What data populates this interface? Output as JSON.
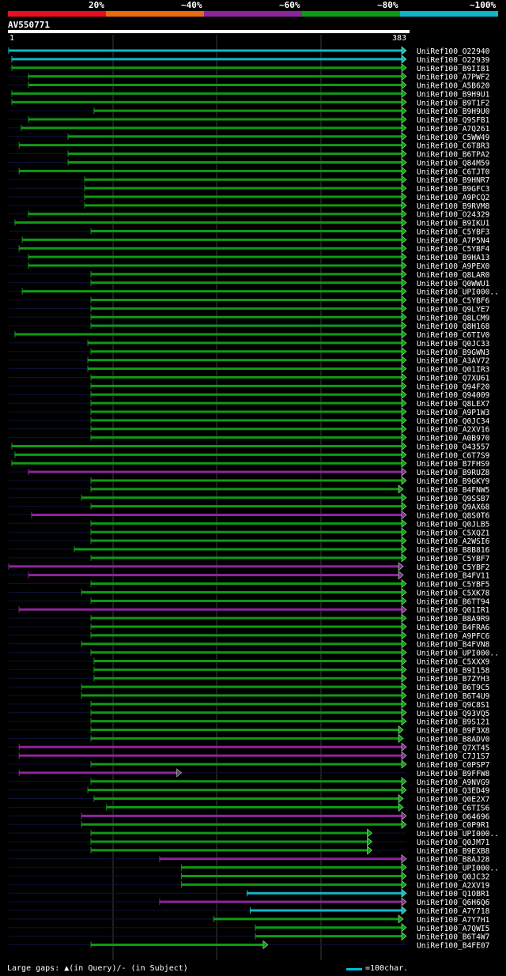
{
  "legend": [
    {
      "label": "20%",
      "color": "#e8101f"
    },
    {
      "label": "~40%",
      "color": "#e86a10"
    },
    {
      "label": "~60%",
      "color": "#8e249c"
    },
    {
      "label": "~80%",
      "color": "#0f9a14"
    },
    {
      "label": "~100%",
      "color": "#10b6c6"
    }
  ],
  "query": {
    "name": "AV550771",
    "start_label": "1",
    "end_label": "383"
  },
  "footer": {
    "gaps_text": "Large gaps: ▲(in Query)/- (in Subject)",
    "scale_text": "=100char."
  },
  "chart_data": {
    "type": "alignment-map",
    "query_length": 383,
    "hits": [
      {
        "name": "UniRef100_O22940",
        "start": 1,
        "end": 383,
        "color": "#10b6c6"
      },
      {
        "name": "UniRef100_O22939",
        "start": 4,
        "end": 383,
        "color": "#10b6c6"
      },
      {
        "name": "UniRef100_B9II81",
        "start": 4,
        "end": 383,
        "color": "#0f9a14"
      },
      {
        "name": "UniRef100_A7PWF2",
        "start": 20,
        "end": 383,
        "color": "#0f9a14"
      },
      {
        "name": "UniRef100_A5B620",
        "start": 20,
        "end": 383,
        "color": "#0f9a14"
      },
      {
        "name": "UniRef100_B9H9U1",
        "start": 4,
        "end": 383,
        "color": "#0f9a14"
      },
      {
        "name": "UniRef100_B9T1F2",
        "start": 4,
        "end": 383,
        "color": "#0f9a14"
      },
      {
        "name": "UniRef100_B9H9U0",
        "start": 83,
        "end": 383,
        "color": "#0f9a14"
      },
      {
        "name": "UniRef100_Q9SFB1",
        "start": 20,
        "end": 383,
        "color": "#0f9a14"
      },
      {
        "name": "UniRef100_A7Q261",
        "start": 13,
        "end": 383,
        "color": "#0f9a14"
      },
      {
        "name": "UniRef100_C5WW49",
        "start": 58,
        "end": 383,
        "color": "#0f9a14"
      },
      {
        "name": "UniRef100_C6T8R3",
        "start": 11,
        "end": 383,
        "color": "#0f9a14"
      },
      {
        "name": "UniRef100_B6TPA2",
        "start": 58,
        "end": 383,
        "color": "#0f9a14"
      },
      {
        "name": "UniRef100_Q84M59",
        "start": 58,
        "end": 383,
        "color": "#0f9a14"
      },
      {
        "name": "UniRef100_C6TJT0",
        "start": 11,
        "end": 383,
        "color": "#0f9a14"
      },
      {
        "name": "UniRef100_B9HNR7",
        "start": 74,
        "end": 383,
        "color": "#0f9a14"
      },
      {
        "name": "UniRef100_B9GFC3",
        "start": 74,
        "end": 383,
        "color": "#0f9a14"
      },
      {
        "name": "UniRef100_A9PCQ2",
        "start": 74,
        "end": 383,
        "color": "#0f9a14"
      },
      {
        "name": "UniRef100_B9RVM8",
        "start": 74,
        "end": 383,
        "color": "#0f9a14"
      },
      {
        "name": "UniRef100_O24329",
        "start": 20,
        "end": 383,
        "color": "#0f9a14"
      },
      {
        "name": "UniRef100_B9IKU1",
        "start": 7,
        "end": 383,
        "color": "#0f9a14"
      },
      {
        "name": "UniRef100_C5YBF3",
        "start": 80,
        "end": 383,
        "color": "#0f9a14"
      },
      {
        "name": "UniRef100_A7P5N4",
        "start": 14,
        "end": 383,
        "color": "#0f9a14"
      },
      {
        "name": "UniRef100_C5YBF4",
        "start": 11,
        "end": 383,
        "color": "#0f9a14"
      },
      {
        "name": "UniRef100_B9HA13",
        "start": 20,
        "end": 383,
        "color": "#0f9a14"
      },
      {
        "name": "UniRef100_A9PEX0",
        "start": 20,
        "end": 383,
        "color": "#0f9a14"
      },
      {
        "name": "UniRef100_Q8LAR0",
        "start": 80,
        "end": 383,
        "color": "#0f9a14"
      },
      {
        "name": "UniRef100_Q0WWU1",
        "start": 80,
        "end": 383,
        "color": "#0f9a14"
      },
      {
        "name": "UniRef100_UPI000..",
        "start": 14,
        "end": 383,
        "color": "#0f9a14"
      },
      {
        "name": "UniRef100_C5YBF6",
        "start": 80,
        "end": 383,
        "color": "#0f9a14"
      },
      {
        "name": "UniRef100_Q9LYE7",
        "start": 80,
        "end": 383,
        "color": "#0f9a14"
      },
      {
        "name": "UniRef100_Q8LCM9",
        "start": 80,
        "end": 383,
        "color": "#0f9a14"
      },
      {
        "name": "UniRef100_Q8H168",
        "start": 80,
        "end": 383,
        "color": "#0f9a14"
      },
      {
        "name": "UniRef100_C6TIV0",
        "start": 7,
        "end": 383,
        "color": "#0f9a14"
      },
      {
        "name": "UniRef100_Q0JC33",
        "start": 77,
        "end": 383,
        "color": "#0f9a14"
      },
      {
        "name": "UniRef100_B9GWN3",
        "start": 80,
        "end": 383,
        "color": "#0f9a14"
      },
      {
        "name": "UniRef100_A3AV72",
        "start": 77,
        "end": 383,
        "color": "#0f9a14"
      },
      {
        "name": "UniRef100_Q01IR3",
        "start": 77,
        "end": 383,
        "color": "#0f9a14"
      },
      {
        "name": "UniRef100_Q7XU61",
        "start": 80,
        "end": 383,
        "color": "#0f9a14"
      },
      {
        "name": "UniRef100_Q94F20",
        "start": 80,
        "end": 383,
        "color": "#0f9a14"
      },
      {
        "name": "UniRef100_Q94009",
        "start": 80,
        "end": 383,
        "color": "#0f9a14"
      },
      {
        "name": "UniRef100_Q8LEX7",
        "start": 80,
        "end": 383,
        "color": "#0f9a14"
      },
      {
        "name": "UniRef100_A9P1W3",
        "start": 80,
        "end": 383,
        "color": "#0f9a14"
      },
      {
        "name": "UniRef100_Q0JC34",
        "start": 80,
        "end": 383,
        "color": "#0f9a14"
      },
      {
        "name": "UniRef100_A2XV16",
        "start": 80,
        "end": 383,
        "color": "#0f9a14"
      },
      {
        "name": "UniRef100_A0B970",
        "start": 80,
        "end": 383,
        "color": "#0f9a14"
      },
      {
        "name": "UniRef100_O43557",
        "start": 4,
        "end": 383,
        "color": "#0f9a14"
      },
      {
        "name": "UniRef100_C6T7S9",
        "start": 7,
        "end": 383,
        "color": "#0f9a14"
      },
      {
        "name": "UniRef100_B7FHS9",
        "start": 4,
        "end": 383,
        "color": "#0f9a14"
      },
      {
        "name": "UniRef100_B9RUZ8",
        "start": 20,
        "end": 383,
        "color": "#8e249c"
      },
      {
        "name": "UniRef100_B9GKY9",
        "start": 80,
        "end": 383,
        "color": "#0f9a14"
      },
      {
        "name": "UniRef100_B4FNW5",
        "start": 80,
        "end": 380,
        "color": "#0f9a14"
      },
      {
        "name": "UniRef100_Q9SSB7",
        "start": 71,
        "end": 383,
        "color": "#0f9a14"
      },
      {
        "name": "UniRef100_Q9AX68",
        "start": 80,
        "end": 383,
        "color": "#0f9a14"
      },
      {
        "name": "UniRef100_Q8S0T6",
        "start": 23,
        "end": 383,
        "color": "#8e249c"
      },
      {
        "name": "UniRef100_Q0JLB5",
        "start": 80,
        "end": 383,
        "color": "#0f9a14"
      },
      {
        "name": "UniRef100_C5XQZ1",
        "start": 80,
        "end": 383,
        "color": "#0f9a14"
      },
      {
        "name": "UniRef100_A2WSI6",
        "start": 80,
        "end": 383,
        "color": "#0f9a14"
      },
      {
        "name": "UniRef100_B8B816",
        "start": 64,
        "end": 383,
        "color": "#0f9a14"
      },
      {
        "name": "UniRef100_C5YBF7",
        "start": 80,
        "end": 383,
        "color": "#0f9a14"
      },
      {
        "name": "UniRef100_C5YBF2",
        "start": 1,
        "end": 380,
        "color": "#8e249c"
      },
      {
        "name": "UniRef100_B4FV11",
        "start": 20,
        "end": 380,
        "color": "#8e249c"
      },
      {
        "name": "UniRef100_C5YBF5",
        "start": 80,
        "end": 383,
        "color": "#0f9a14"
      },
      {
        "name": "UniRef100_C5XK78",
        "start": 71,
        "end": 383,
        "color": "#0f9a14"
      },
      {
        "name": "UniRef100_B6TT94",
        "start": 80,
        "end": 383,
        "color": "#0f9a14"
      },
      {
        "name": "UniRef100_Q01IR1",
        "start": 11,
        "end": 383,
        "color": "#8e249c"
      },
      {
        "name": "UniRef100_B8A9R9",
        "start": 80,
        "end": 383,
        "color": "#0f9a14"
      },
      {
        "name": "UniRef100_B4FRA6",
        "start": 80,
        "end": 383,
        "color": "#0f9a14"
      },
      {
        "name": "UniRef100_A9PFC6",
        "start": 80,
        "end": 383,
        "color": "#0f9a14"
      },
      {
        "name": "UniRef100_B4FVN8",
        "start": 71,
        "end": 383,
        "color": "#0f9a14"
      },
      {
        "name": "UniRef100_UPI000..",
        "start": 80,
        "end": 383,
        "color": "#0f9a14"
      },
      {
        "name": "UniRef100_C5XXX9",
        "start": 83,
        "end": 383,
        "color": "#0f9a14"
      },
      {
        "name": "UniRef100_B9I158",
        "start": 83,
        "end": 383,
        "color": "#0f9a14"
      },
      {
        "name": "UniRef100_B7ZYH3",
        "start": 83,
        "end": 383,
        "color": "#0f9a14"
      },
      {
        "name": "UniRef100_B6T9C5",
        "start": 71,
        "end": 383,
        "color": "#0f9a14"
      },
      {
        "name": "UniRef100_B6T4U9",
        "start": 71,
        "end": 383,
        "color": "#0f9a14"
      },
      {
        "name": "UniRef100_Q9C8S1",
        "start": 80,
        "end": 383,
        "color": "#0f9a14"
      },
      {
        "name": "UniRef100_Q93VQ5",
        "start": 80,
        "end": 383,
        "color": "#0f9a14"
      },
      {
        "name": "UniRef100_B9S121",
        "start": 80,
        "end": 383,
        "color": "#0f9a14"
      },
      {
        "name": "UniRef100_B9F3X8",
        "start": 80,
        "end": 380,
        "color": "#0f9a14"
      },
      {
        "name": "UniRef100_B8ADV0",
        "start": 80,
        "end": 380,
        "color": "#0f9a14"
      },
      {
        "name": "UniRef100_Q7XT45",
        "start": 11,
        "end": 383,
        "color": "#8e249c"
      },
      {
        "name": "UniRef100_C7J1S7",
        "start": 11,
        "end": 383,
        "color": "#8e249c"
      },
      {
        "name": "UniRef100_C0PSP7",
        "start": 80,
        "end": 383,
        "color": "#0f9a14"
      },
      {
        "name": "UniRef100_B9FFW8",
        "start": 11,
        "end": 167,
        "color": "#8e249c"
      },
      {
        "name": "UniRef100_A9NVG9",
        "start": 80,
        "end": 383,
        "color": "#0f9a14"
      },
      {
        "name": "UniRef100_Q3ED49",
        "start": 77,
        "end": 383,
        "color": "#0f9a14"
      },
      {
        "name": "UniRef100_Q0E2X7",
        "start": 83,
        "end": 380,
        "color": "#0f9a14"
      },
      {
        "name": "UniRef100_C6TIS6",
        "start": 95,
        "end": 380,
        "color": "#0f9a14"
      },
      {
        "name": "UniRef100_O64696",
        "start": 71,
        "end": 383,
        "color": "#8e249c"
      },
      {
        "name": "UniRef100_C0P9R1",
        "start": 71,
        "end": 383,
        "color": "#0f9a14"
      },
      {
        "name": "UniRef100_UPI000..",
        "start": 80,
        "end": 350,
        "color": "#0f9a14"
      },
      {
        "name": "UniRef100_Q0JM71",
        "start": 80,
        "end": 350,
        "color": "#0f9a14"
      },
      {
        "name": "UniRef100_B9EXB8",
        "start": 80,
        "end": 350,
        "color": "#0f9a14"
      },
      {
        "name": "UniRef100_B8AJ28",
        "start": 146,
        "end": 383,
        "color": "#8e249c"
      },
      {
        "name": "UniRef100_UPI000..",
        "start": 167,
        "end": 383,
        "color": "#0f9a14"
      },
      {
        "name": "UniRef100_Q0JC32",
        "start": 167,
        "end": 383,
        "color": "#0f9a14"
      },
      {
        "name": "UniRef100_A2XV19",
        "start": 167,
        "end": 383,
        "color": "#0f9a14"
      },
      {
        "name": "UniRef100_Q1OBR1",
        "start": 230,
        "end": 383,
        "color": "#10b6c6"
      },
      {
        "name": "UniRef100_Q6H6Q6",
        "start": 146,
        "end": 383,
        "color": "#8e249c"
      },
      {
        "name": "UniRef100_A7Y718",
        "start": 233,
        "end": 383,
        "color": "#10b6c6"
      },
      {
        "name": "UniRef100_A7Y7H1",
        "start": 198,
        "end": 380,
        "color": "#0f9a14"
      },
      {
        "name": "UniRef100_A7QWI5",
        "start": 238,
        "end": 383,
        "color": "#0f9a14"
      },
      {
        "name": "UniRef100_B6T4W7",
        "start": 238,
        "end": 383,
        "color": "#0f9a14"
      },
      {
        "name": "UniRef100_B4FE07",
        "start": 80,
        "end": 250,
        "color": "#0f9a14"
      }
    ]
  }
}
